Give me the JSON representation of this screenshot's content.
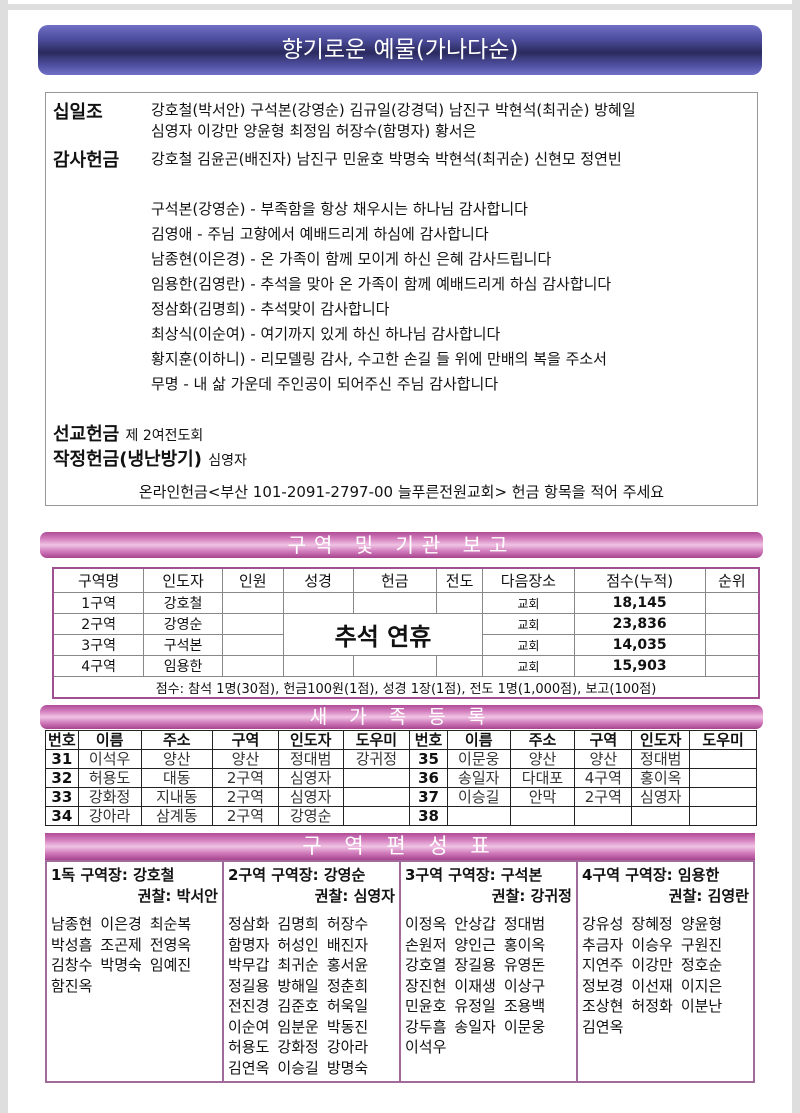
{
  "title": "향기로운 예물(가나다순)",
  "offerings": {
    "tithe_label": "십일조",
    "tithe_line1": "강호철(박서안) 구석본(강영순) 김규일(강경덕) 남진구 박현석(최귀순) 방혜일",
    "tithe_line2": "심영자 이강만 양윤형 최정임 허장수(함명자) 황서은",
    "thanks_label": "감사헌금",
    "thanks_line": "강호철 김윤곤(배진자) 남진구 민윤호 박명숙 박현석(최귀순) 신현모 정연빈",
    "messages": [
      "구석본(강영순) - 부족함을 항상 채우시는 하나님 감사합니다",
      "김영애 - 주님 고향에서 예배드리게 하심에 감사합니다",
      "남종현(이은경) - 온 가족이 함께 모이게 하신 은혜 감사드립니다",
      "임용한(김영란) - 추석을 맞아 온 가족이 함께 예배드리게 하심 감사합니다",
      "정삼화(김명희) - 추석맞이 감사합니다",
      "최상식(이순여) - 여기까지 있게 하신 하나님 감사합니다",
      "황지훈(이하니) - 리모델링 감사, 수고한 손길 들 위에 만배의 복을 주소서",
      "무명 - 내 삶 가운데 주인공이 되어주신 주님 감사합니다"
    ],
    "mission_label": "선교헌금",
    "mission_value": "제 2여전도회",
    "pledge_label": "작정헌금(냉난방기)",
    "pledge_value": "심영자",
    "online_note": "온라인헌금<부산 101-2091-2797-00 늘푸른전원교회> 헌금 항목을 적어 주세요"
  },
  "report": {
    "banner": "구역 및 기관 보고",
    "headers": [
      "구역명",
      "인도자",
      "인원",
      "성경",
      "헌금",
      "전도",
      "다음장소",
      "점수(누적)",
      "순위"
    ],
    "holiday_text": "추석 연휴",
    "rows": [
      {
        "zone": "1구역",
        "leader": "강호철",
        "next": "교회",
        "score": "18,145"
      },
      {
        "zone": "2구역",
        "leader": "강영순",
        "next": "교회",
        "score": "23,836"
      },
      {
        "zone": "3구역",
        "leader": "구석본",
        "next": "교회",
        "score": "14,035"
      },
      {
        "zone": "4구역",
        "leader": "임용한",
        "next": "교회",
        "score": "15,903"
      }
    ],
    "footer": "점수: 참석 1명(30점),  헌금100원(1점),  성경 1장(1점),  전도 1명(1,000점),  보고(100점)"
  },
  "newfamily": {
    "banner": "새 가 족   등 록",
    "headers": [
      "번호",
      "이름",
      "주소",
      "구역",
      "인도자",
      "도우미"
    ],
    "rows": [
      [
        [
          "31",
          "이석우",
          "양산",
          "양산",
          "정대범",
          "강귀정"
        ],
        [
          "35",
          "이문웅",
          "양산",
          "양산",
          "정대범",
          ""
        ]
      ],
      [
        [
          "32",
          "허용도",
          "대동",
          "2구역",
          "심영자",
          ""
        ],
        [
          "36",
          "송일자",
          "다대포",
          "4구역",
          "홍이옥",
          ""
        ]
      ],
      [
        [
          "33",
          "강화정",
          "지내동",
          "2구역",
          "심영자",
          ""
        ],
        [
          "37",
          "이승길",
          "안막",
          "2구역",
          "심영자",
          ""
        ]
      ],
      [
        [
          "34",
          "강아라",
          "삼계동",
          "2구역",
          "강영순",
          ""
        ],
        [
          "38",
          "",
          "",
          "",
          "",
          ""
        ]
      ]
    ]
  },
  "zones": {
    "banner": "구 역 편 성 표",
    "groups": [
      {
        "head": "1독 구역장: 강호철",
        "sub": "권찰: 박서안",
        "names": [
          "남종현",
          "이은경",
          "최순복",
          "박성흠",
          "조곤제",
          "전영옥",
          "김창수",
          "박명숙",
          "임예진",
          "함진옥"
        ]
      },
      {
        "head": "2구역 구역장: 강영순",
        "sub": "권찰: 심영자",
        "names": [
          "정삼화",
          "김명희",
          "허장수",
          "함명자",
          "허성인",
          "배진자",
          "박무갑",
          "최귀순",
          "홍서윤",
          "정길용",
          "방해일",
          "정춘희",
          "전진경",
          "김준호",
          "허욱일",
          "이순여",
          "임분운",
          "박동진",
          "허용도",
          "강화정",
          "강아라",
          "김연옥",
          "이승길",
          "방명숙"
        ]
      },
      {
        "head": "3구역 구역장: 구석본",
        "sub": "권찰: 강귀정",
        "names": [
          "이정옥",
          "안상갑",
          "정대범",
          "손원저",
          "양인근",
          "홍이옥",
          "강호열",
          "장길용",
          "유영돈",
          "장진현",
          "이재생",
          "이상구",
          "민윤호",
          "유정일",
          "조용백",
          "강두흠",
          "송일자",
          "이문웅",
          "이석우"
        ]
      },
      {
        "head": "4구역 구역장: 임용한",
        "sub": "권찰: 김영란",
        "names": [
          "강유성",
          "장혜정",
          "양윤형",
          "추금자",
          "이승우",
          "구원진",
          "지연주",
          "이강만",
          "정호순",
          "정보경",
          "이선재",
          "이지은",
          "조상현",
          "허정화",
          "이분난",
          "김연옥"
        ]
      }
    ]
  }
}
